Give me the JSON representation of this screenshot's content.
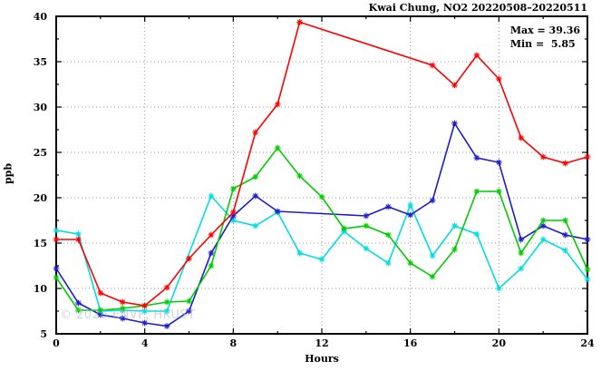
{
  "chart_data": {
    "type": "line",
    "title": "Kwai Chung, NO2 20220508–20220511",
    "xlabel": "Hours",
    "ylabel": "ppb",
    "watermark": "© 2026 ENVF, HKUST",
    "annotations": {
      "max": "Max = 39.36",
      "min": "Min =  5.85"
    },
    "xlim": [
      0,
      24
    ],
    "ylim": [
      5,
      40
    ],
    "xticks": [
      0,
      4,
      8,
      12,
      16,
      20,
      24
    ],
    "yticks": [
      5,
      10,
      15,
      20,
      25,
      30,
      35,
      40
    ],
    "x_minor_step": 2,
    "y_minor_step": 2.5,
    "grid": true,
    "legend": "none",
    "axis_color": "#000000",
    "grid_color": "#999999",
    "x": [
      0,
      1,
      2,
      3,
      4,
      5,
      6,
      7,
      8,
      9,
      10,
      11,
      12,
      13,
      14,
      15,
      16,
      17,
      18,
      19,
      20,
      21,
      22,
      23,
      24
    ],
    "series": [
      {
        "name": "series-cyan",
        "color": "#00dde0",
        "values": [
          16.4,
          16.0,
          7.5,
          7.6,
          7.5,
          7.5,
          null,
          20.2,
          17.5,
          16.9,
          18.4,
          13.9,
          13.2,
          16.3,
          14.4,
          12.8,
          19.2,
          13.6,
          16.9,
          16.0,
          10.0,
          12.2,
          15.4,
          14.2,
          11.0
        ]
      },
      {
        "name": "series-blue",
        "color": "#1c1ccd",
        "values": [
          12.2,
          8.4,
          7.1,
          6.7,
          6.2,
          5.85,
          7.5,
          13.9,
          18.0,
          20.2,
          18.5,
          null,
          null,
          null,
          18.0,
          19.0,
          18.1,
          19.7,
          28.2,
          24.4,
          23.9,
          15.4,
          16.9,
          15.9,
          15.4
        ]
      },
      {
        "name": "series-green",
        "color": "#00cc00",
        "values": [
          11.2,
          7.6,
          7.6,
          7.8,
          8.1,
          8.5,
          8.6,
          12.5,
          21.0,
          22.3,
          25.5,
          22.4,
          20.1,
          16.6,
          16.9,
          15.9,
          12.8,
          11.3,
          14.3,
          20.7,
          20.7,
          13.9,
          17.5,
          17.5,
          12.1
        ]
      },
      {
        "name": "series-red",
        "color": "#ff0000",
        "values": [
          15.4,
          15.4,
          9.5,
          8.5,
          8.1,
          10.1,
          13.3,
          15.9,
          18.4,
          27.2,
          30.3,
          39.36,
          null,
          null,
          null,
          null,
          null,
          34.6,
          32.4,
          35.7,
          33.1,
          26.6,
          24.5,
          23.8,
          24.5
        ]
      }
    ]
  }
}
